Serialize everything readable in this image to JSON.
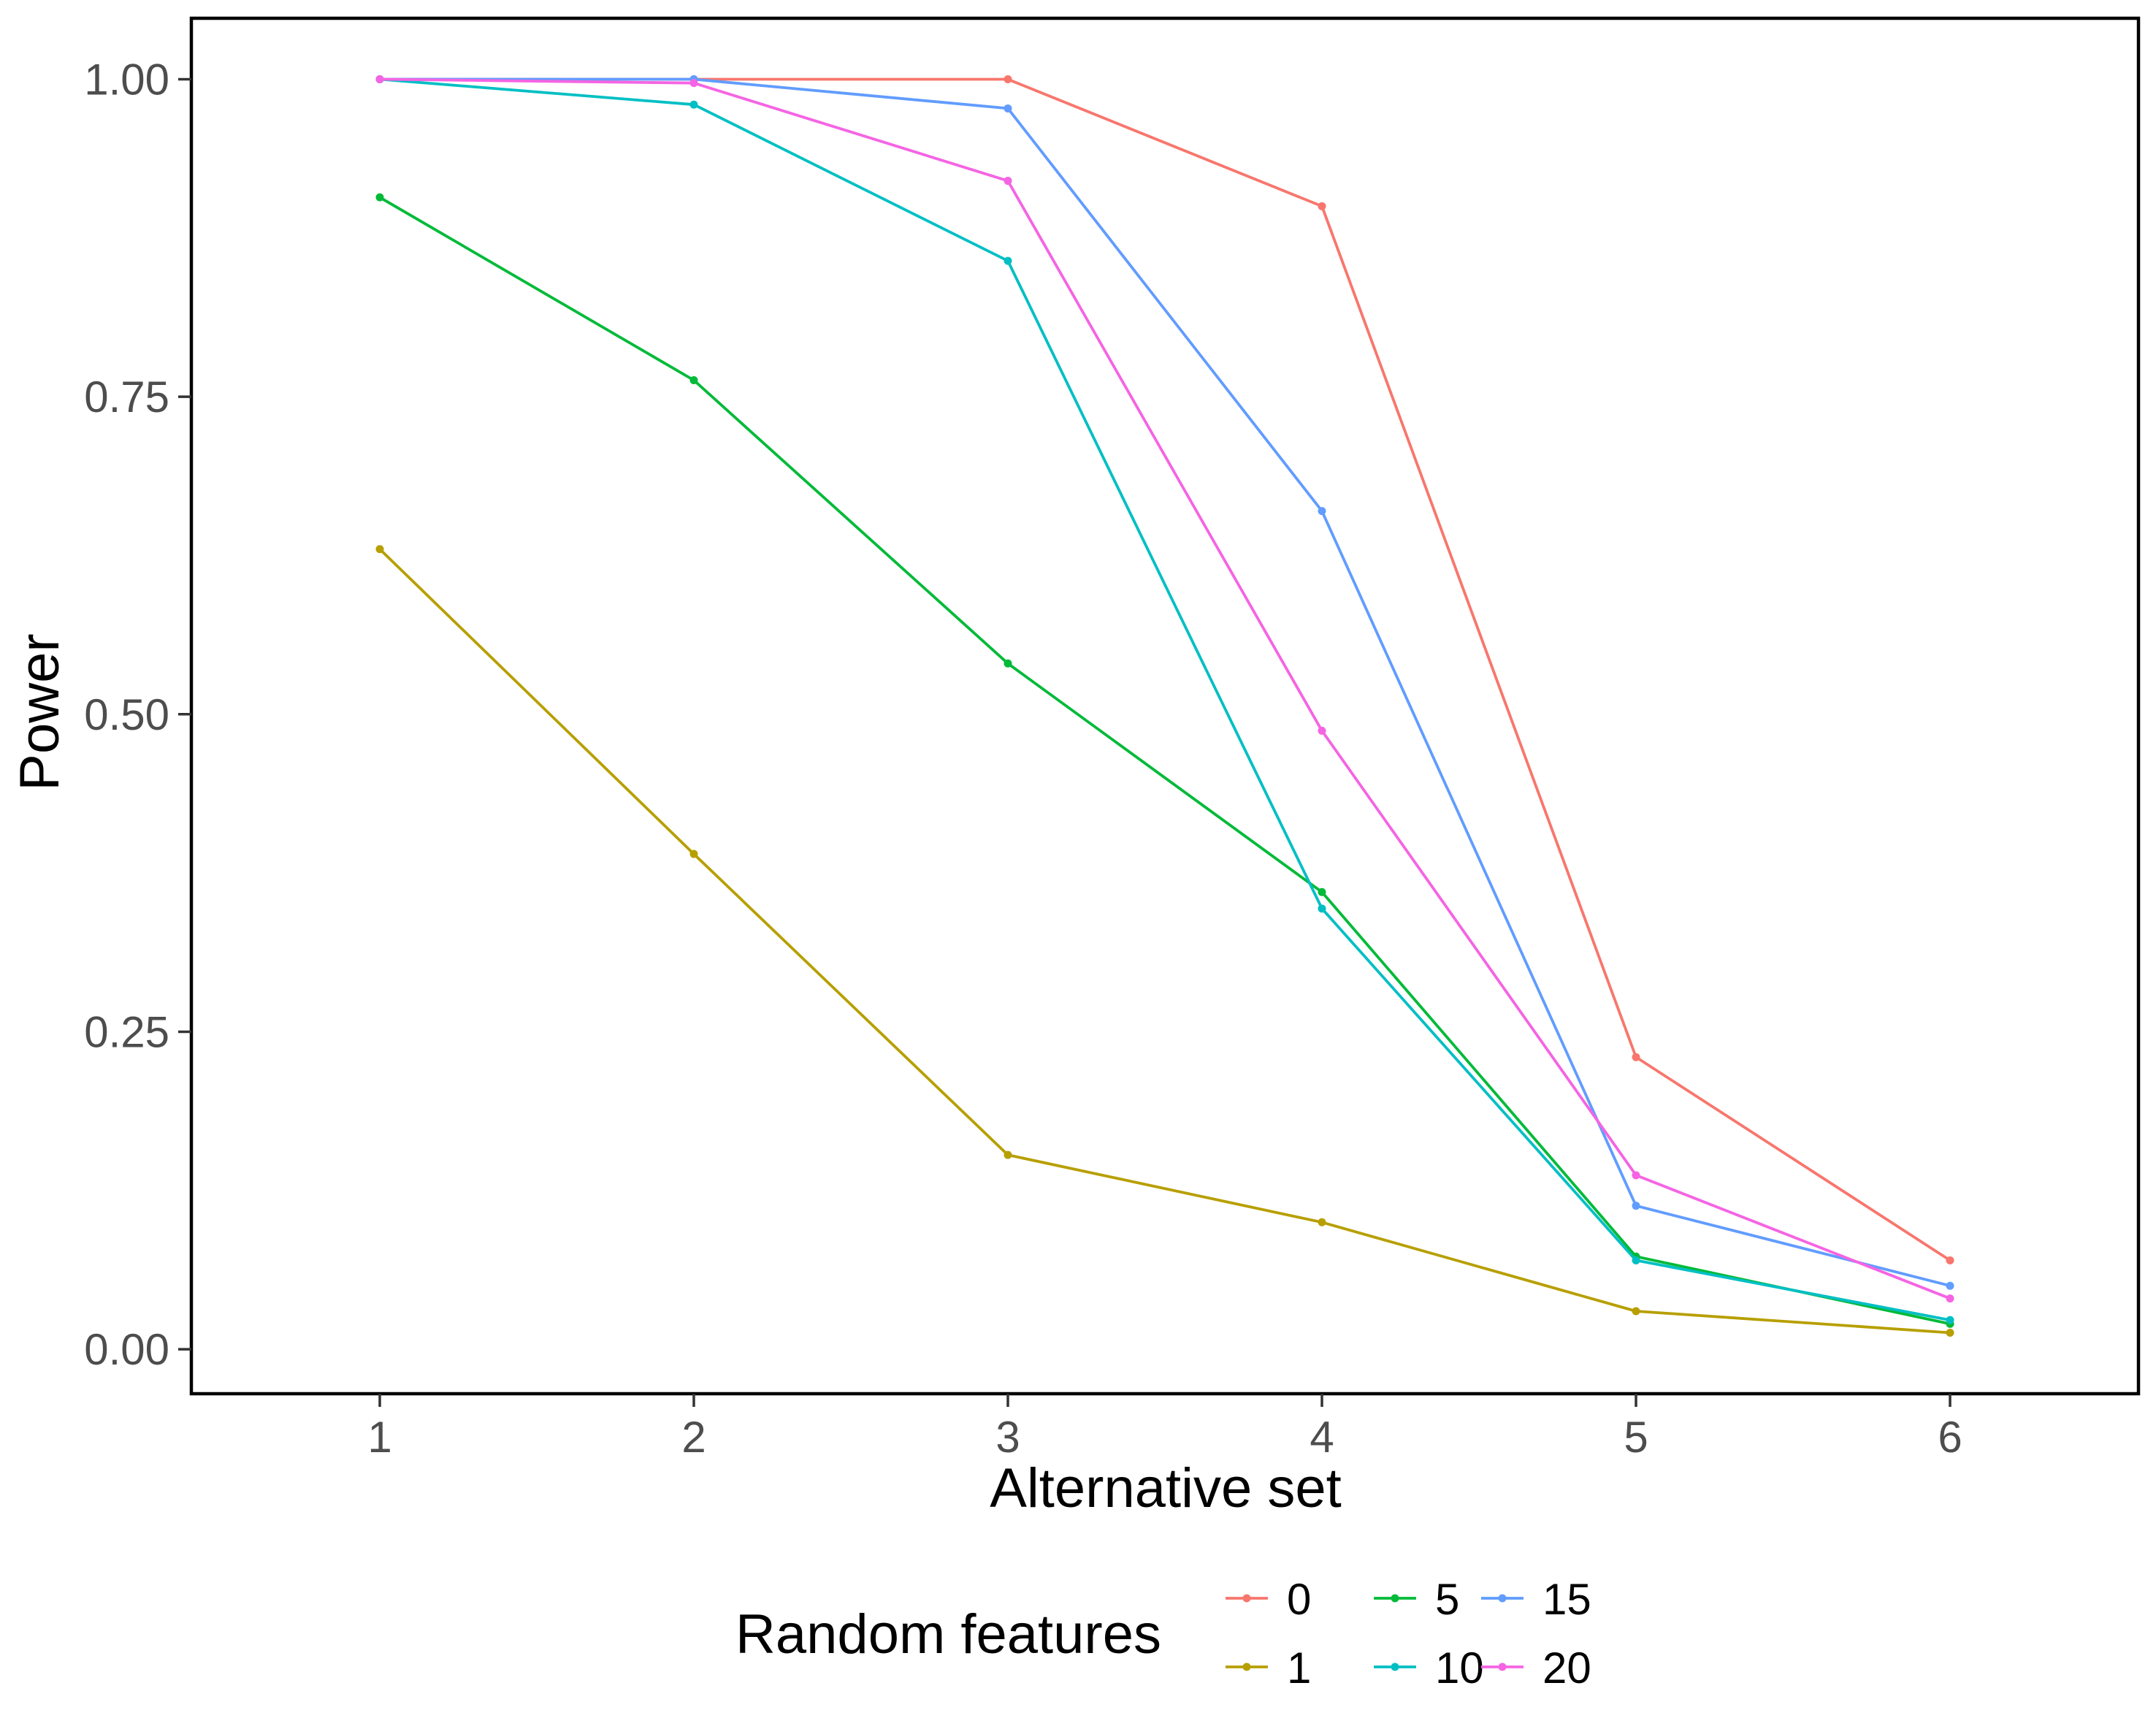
{
  "chart_data": {
    "type": "line",
    "title": "",
    "xlabel": "Alternative set",
    "ylabel": "Power",
    "x": [
      1,
      2,
      3,
      4,
      5,
      6
    ],
    "x_ticks": [
      "1",
      "2",
      "3",
      "4",
      "5",
      "6"
    ],
    "y_ticks": [
      "0.00",
      "0.25",
      "0.50",
      "0.75",
      "1.00"
    ],
    "y_tick_values": [
      0,
      0.25,
      0.5,
      0.75,
      1.0
    ],
    "xlim": [
      0.4,
      6.6
    ],
    "ylim": [
      -0.035,
      1.048
    ],
    "grid": false,
    "legend": {
      "title": "Random features",
      "placement": "bottom"
    },
    "series": [
      {
        "name": "0",
        "color": "#F8766D",
        "values": [
          1.0,
          1.0,
          1.0,
          0.9,
          0.23,
          0.07
        ]
      },
      {
        "name": "1",
        "color": "#B79F00",
        "values": [
          0.63,
          0.39,
          0.153,
          0.1,
          0.03,
          0.013
        ]
      },
      {
        "name": "5",
        "color": "#00BA38",
        "values": [
          0.907,
          0.763,
          0.54,
          0.36,
          0.073,
          0.02
        ]
      },
      {
        "name": "10",
        "color": "#00BFC4",
        "values": [
          1.0,
          0.98,
          0.857,
          0.347,
          0.07,
          0.023
        ]
      },
      {
        "name": "15",
        "color": "#619CFF",
        "values": [
          1.0,
          1.0,
          0.977,
          0.66,
          0.113,
          0.05
        ]
      },
      {
        "name": "20",
        "color": "#F564E3",
        "values": [
          1.0,
          0.997,
          0.92,
          0.487,
          0.137,
          0.04
        ]
      }
    ]
  }
}
